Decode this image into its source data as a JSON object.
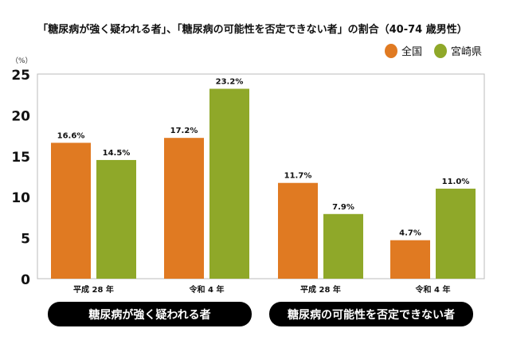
{
  "chart_data": {
    "type": "bar",
    "title": "「糖尿病が強く疑われる者」、「糖尿病の可能性を否定できない者」の割合（40-74 歳男性）",
    "ylabel": "（%）",
    "ylim": [
      0,
      25
    ],
    "yticks": [
      "0",
      "5",
      "10",
      "15",
      "20",
      "25"
    ],
    "categories": [
      "平成 28 年",
      "令和 4 年",
      "平成 28 年",
      "令和 4 年"
    ],
    "groups": [
      "糖尿病が強く疑われる者",
      "糖尿病の可能性を否定できない者"
    ],
    "legend_position": "top-right",
    "series": [
      {
        "name": "全国",
        "color": "#E07A22",
        "values": [
          16.6,
          17.2,
          11.7,
          4.7
        ],
        "labels": [
          "16.6%",
          "17.2%",
          "11.7%",
          "4.7%"
        ]
      },
      {
        "name": "宮崎県",
        "color": "#8FA829",
        "values": [
          14.5,
          23.2,
          7.9,
          11.0
        ],
        "labels": [
          "14.5%",
          "23.2%",
          "7.9%",
          "11.0%"
        ]
      }
    ]
  }
}
